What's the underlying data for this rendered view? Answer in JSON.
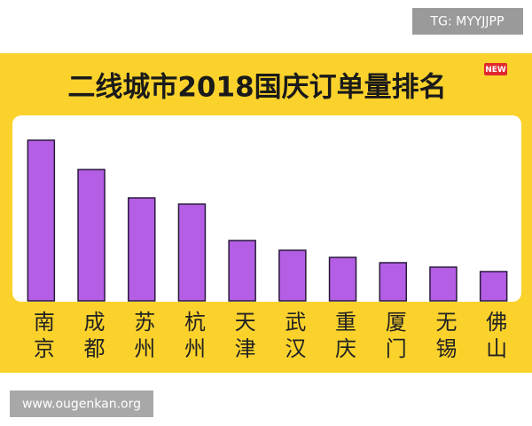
{
  "chart_data": {
    "type": "bar",
    "title": "二线城市2018国庆订单量排名",
    "badge": "NEW",
    "categories": [
      "南京",
      "成都",
      "苏州",
      "杭州",
      "天津",
      "武汉",
      "重庆",
      "厦门",
      "无锡",
      "佛山"
    ],
    "values": [
      181,
      148,
      116,
      109,
      68,
      57,
      49,
      43,
      38,
      33
    ],
    "color": "#b45ee6",
    "ylim": [
      0,
      200
    ]
  },
  "watermarks": {
    "top_right": "TG: MYYJJPP",
    "bottom_left": "www.ougenkan.org"
  }
}
